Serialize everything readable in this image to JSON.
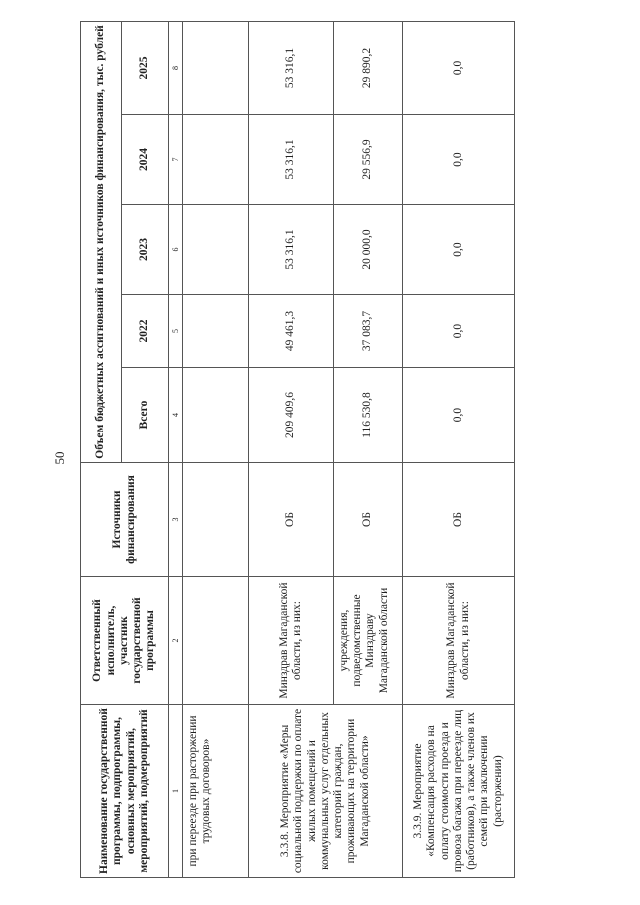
{
  "page_number": "50",
  "table": {
    "headers": {
      "col1": "Наименование государственной программы, подпрограммы, основных мероприятий, мероприятий, подмероприятий",
      "col2": "Ответственный исполнитель, участник государственной программы",
      "col3": "Источники финансирования",
      "funding_group": "Объем бюджетных ассигнований и иных источников финансирования, тыс. рублей",
      "total": "Всего",
      "years": [
        "2022",
        "2023",
        "2024",
        "2025"
      ]
    },
    "column_numbers": [
      "1",
      "2",
      "3",
      "4",
      "5",
      "6",
      "7",
      "8"
    ],
    "rows": [
      {
        "name": "при переезде при расторжении трудовых договоров»",
        "executor": "",
        "source": "",
        "total": "",
        "y2022": "",
        "y2023": "",
        "y2024": "",
        "y2025": ""
      },
      {
        "name": "3.3.8. Мероприятие «Меры социальной поддержки по оплате жилых помещений и коммунальных услуг отдельных категорий граждан, проживающих на территории Магаданской области»",
        "executor": "Минздрав Магаданской области, из них:",
        "source": "ОБ",
        "total": "209 409,6",
        "y2022": "49 461,3",
        "y2023": "53 316,1",
        "y2024": "53 316,1",
        "y2025": "53 316,1"
      },
      {
        "executor": "учреждения, подведомственные Минздраву Магаданской области",
        "source": "ОБ",
        "total": "116 530,8",
        "y2022": "37 083,7",
        "y2023": "20 000,0",
        "y2024": "29 556,9",
        "y2025": "29 890,2"
      },
      {
        "name": "3.3.9. Мероприятие «Компенсация расходов на оплату стоимости проезда и провоза багажа при переезде лиц (работников), а также членов их семей при заключении (расторжении)",
        "executor": "Минздрав Магаданской области, из них:",
        "source": "ОБ",
        "total": "0,0",
        "y2022": "0,0",
        "y2023": "0,0",
        "y2024": "0,0",
        "y2025": "0,0"
      }
    ]
  }
}
